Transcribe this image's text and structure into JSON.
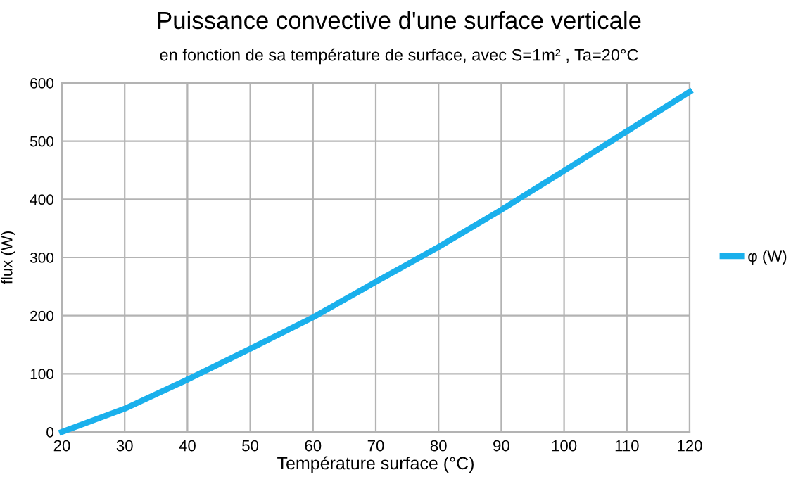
{
  "chart_data": {
    "type": "line",
    "title": "Puissance convective d'une surface verticale",
    "subtitle": "en fonction de sa température de surface, avec S=1m² , Ta=20°C",
    "xlabel": "Température surface (°C)",
    "ylabel": "flux (W)",
    "x": [
      20,
      30,
      40,
      50,
      60,
      70,
      80,
      90,
      100,
      110,
      120
    ],
    "series": [
      {
        "name": "φ (W)",
        "color": "#1ab0ec",
        "values": [
          0,
          40,
          90,
          143,
          197,
          258,
          318,
          382,
          449,
          517,
          585
        ]
      }
    ],
    "xlim": [
      20,
      120
    ],
    "xticks": [
      20,
      30,
      40,
      50,
      60,
      70,
      80,
      90,
      100,
      110,
      120
    ],
    "ylim": [
      0,
      600
    ],
    "yticks": [
      0,
      100,
      200,
      300,
      400,
      500,
      600
    ],
    "grid": true,
    "legend": "right",
    "line_style": "solid",
    "marker": "none"
  }
}
